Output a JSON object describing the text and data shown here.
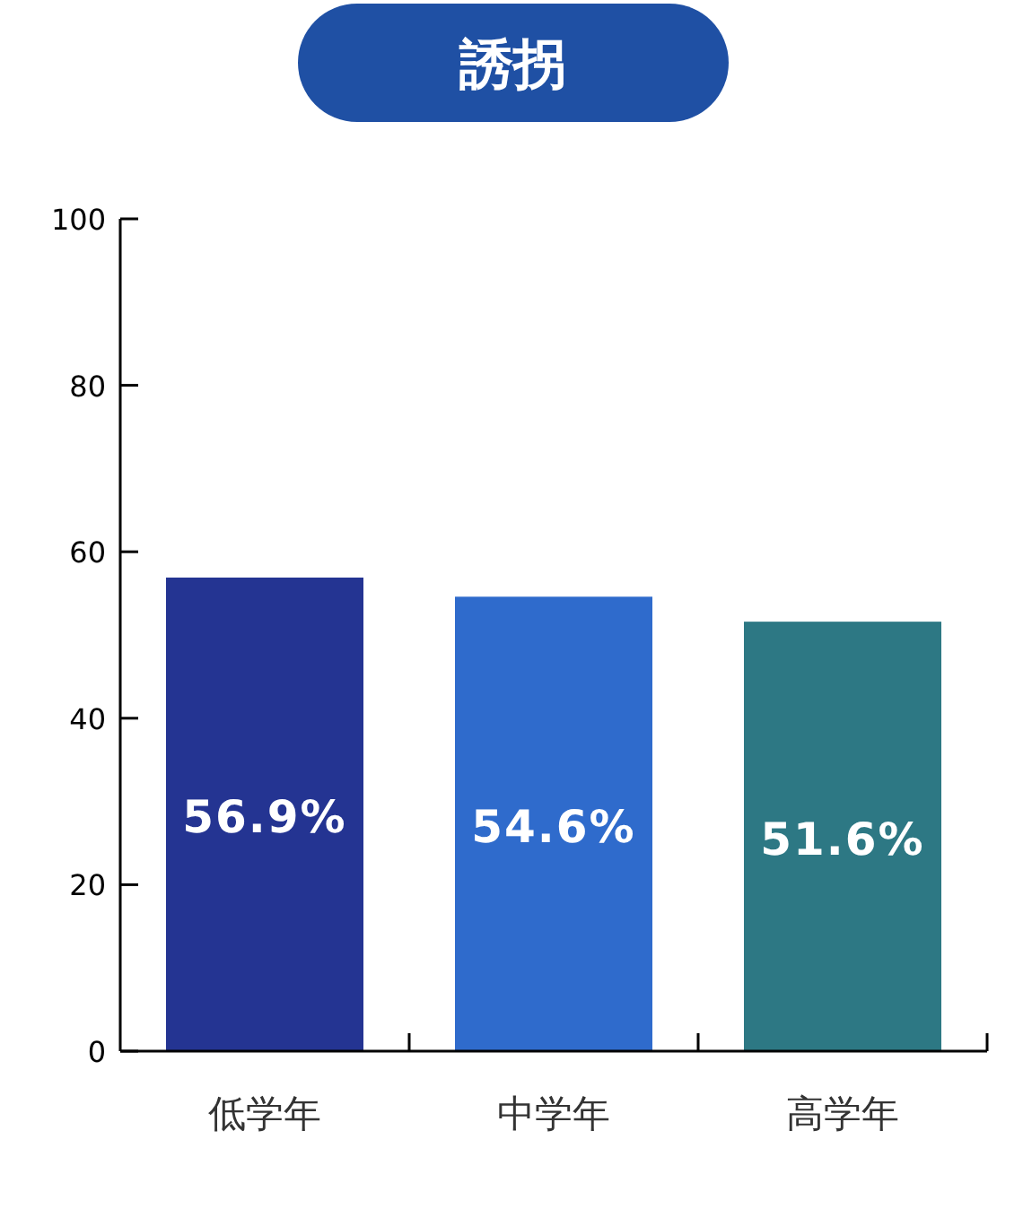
{
  "chart_data": {
    "type": "bar",
    "title": "誘拐",
    "categories": [
      "低学年",
      "中学年",
      "高学年"
    ],
    "values": [
      56.9,
      54.6,
      51.6
    ],
    "colors": [
      "#243492",
      "#2f6bcc",
      "#2d7884"
    ],
    "value_labels": [
      "56.9%",
      "54.6%",
      "51.6%"
    ],
    "ylim": [
      0,
      100
    ],
    "yticks": [
      0,
      20,
      40,
      60,
      80,
      100
    ]
  }
}
